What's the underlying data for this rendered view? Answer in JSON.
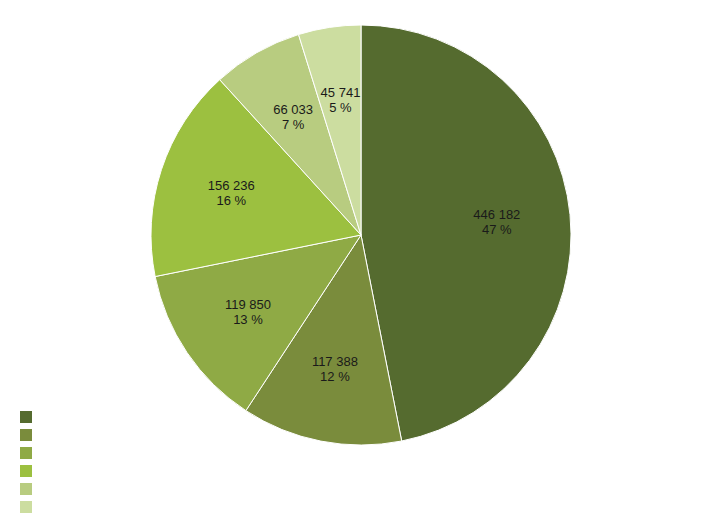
{
  "chart_data": {
    "type": "pie",
    "values": [
      446182,
      117388,
      119850,
      156236,
      66033,
      45741
    ],
    "value_labels": [
      "446 182",
      "117 388",
      "119 850",
      "156 236",
      "66 033",
      "45 741"
    ],
    "percentages": [
      47,
      12,
      13,
      16,
      7,
      5
    ],
    "percentage_labels": [
      "47 %",
      "12 %",
      "13 %",
      "16 %",
      "7 %",
      "5 %"
    ],
    "colors": [
      "#556b2f",
      "#7a8c3c",
      "#8faa45",
      "#9cc040",
      "#b8cc80",
      "#ccdda0"
    ],
    "data_labels": true,
    "legend": "lower left"
  }
}
